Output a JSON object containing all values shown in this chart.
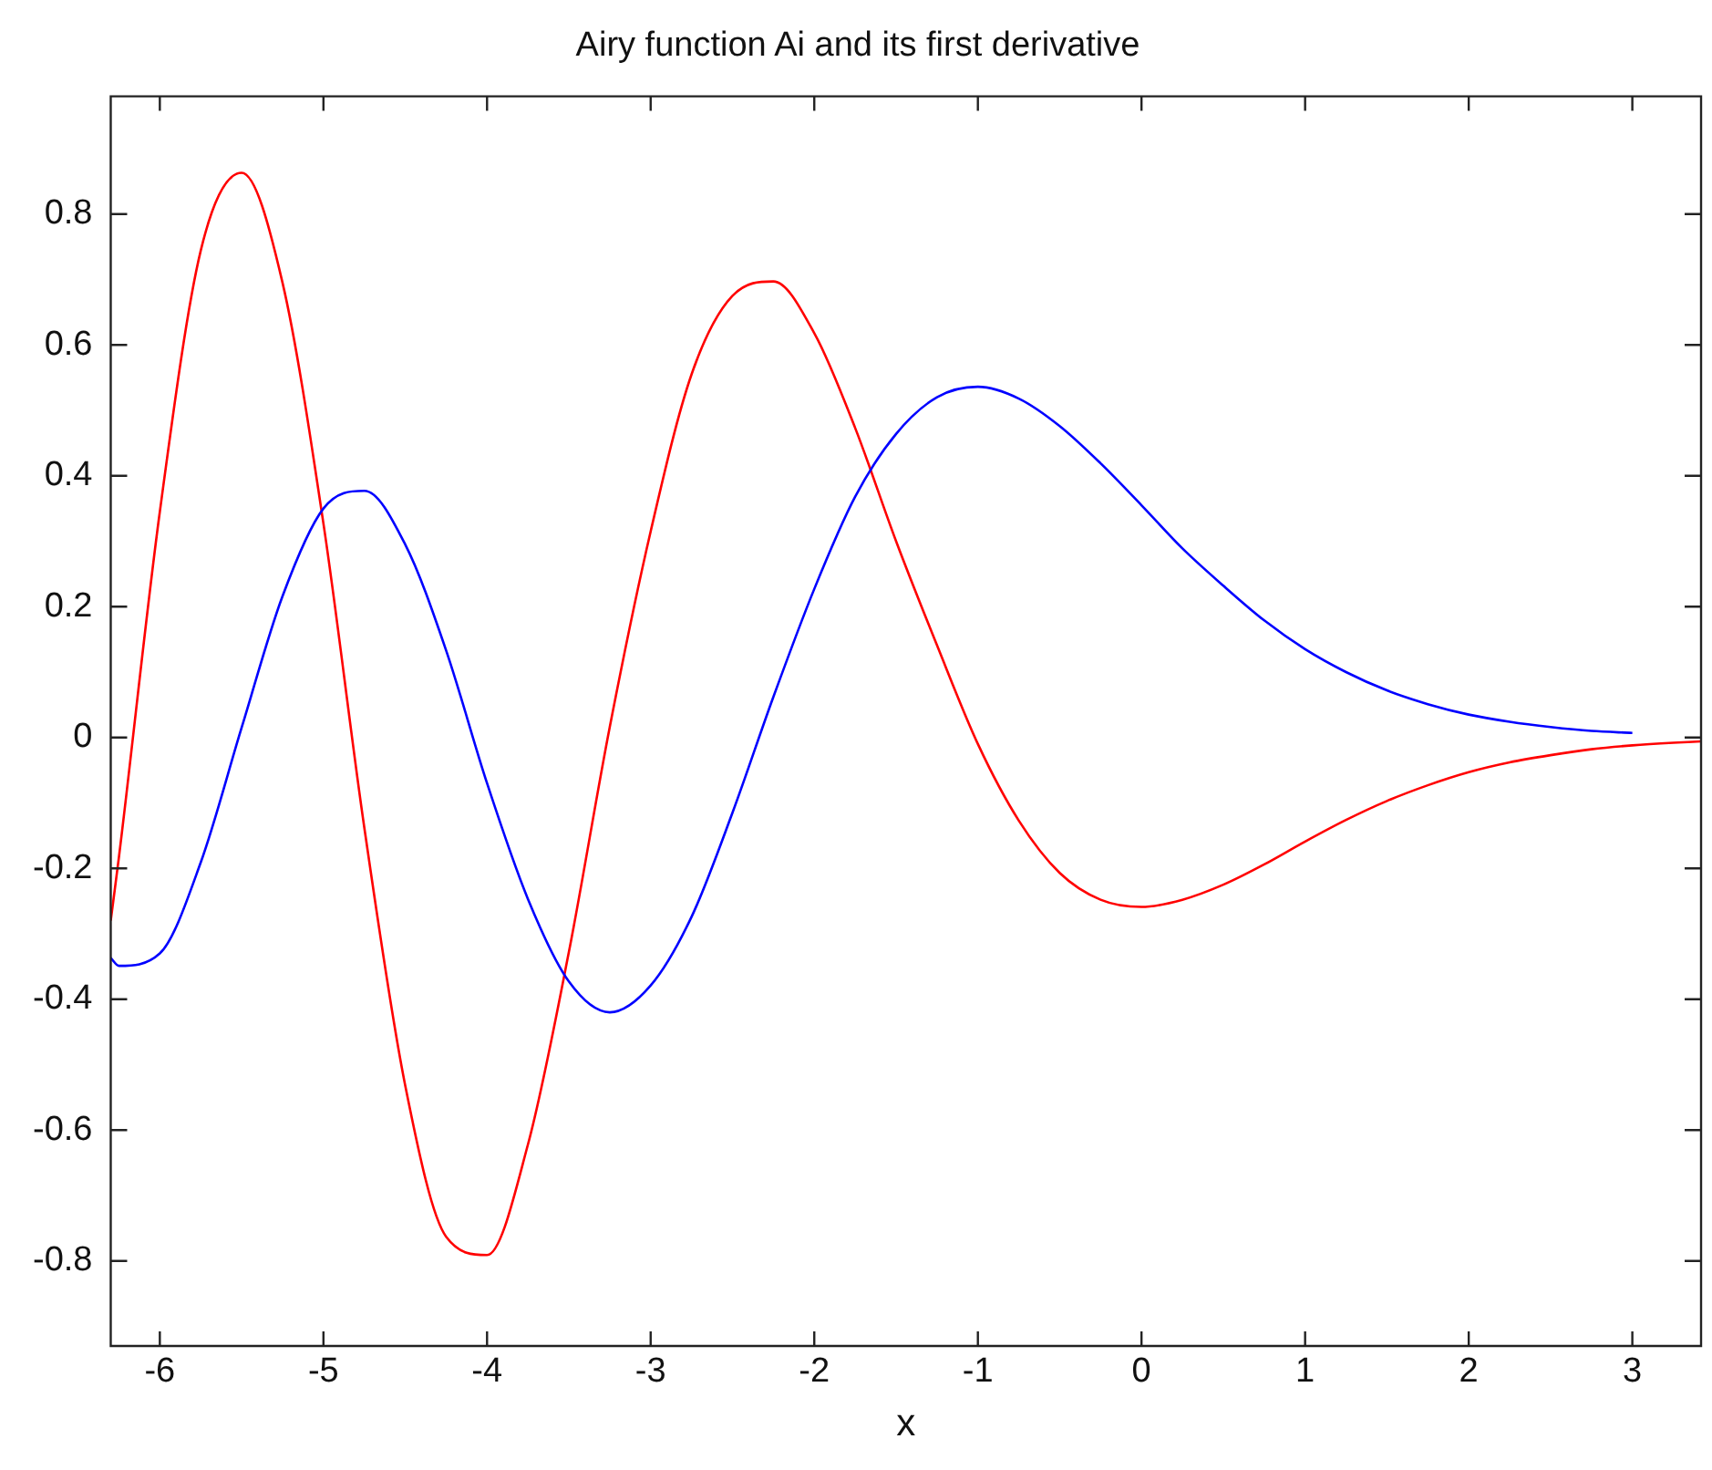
{
  "chart_data": {
    "type": "line",
    "title": "Airy function Ai and its first derivative",
    "xlabel": "x",
    "xlim": [
      -6.3,
      3.42
    ],
    "xticks": [
      -6,
      -5,
      -4,
      -3,
      -2,
      -1,
      0,
      1,
      2,
      3
    ],
    "ylim": [
      -0.93,
      0.98
    ],
    "yticks": [
      -0.8,
      -0.6,
      -0.4,
      -0.2,
      0,
      0.2,
      0.4,
      0.6,
      0.8
    ],
    "grid": false,
    "legend": false,
    "marker": "none",
    "line_style": "solid",
    "series": [
      {
        "color": "#0000ff",
        "x": [
          -6.3,
          -6.25,
          -6.0,
          -5.75,
          -5.5,
          -5.25,
          -5.0,
          -4.75,
          -4.5,
          -4.25,
          -4.0,
          -3.75,
          -3.5,
          -3.25,
          -3.0,
          -2.75,
          -2.5,
          -2.25,
          -2.0,
          -1.75,
          -1.5,
          -1.25,
          -1.0,
          -0.75,
          -0.5,
          -0.25,
          0,
          0.25,
          0.5,
          0.75,
          1.0,
          1.25,
          1.5,
          1.75,
          2.0,
          2.25,
          2.5,
          2.75,
          3.0
        ],
        "values": [
          -0.337,
          -0.349,
          -0.33,
          -0.191,
          0.015,
          0.216,
          0.35,
          0.377,
          0.295,
          0.133,
          -0.07,
          -0.247,
          -0.373,
          -0.42,
          -0.379,
          -0.274,
          -0.115,
          0.062,
          0.227,
          0.368,
          0.464,
          0.52,
          0.536,
          0.518,
          0.476,
          0.419,
          0.355,
          0.289,
          0.232,
          0.179,
          0.135,
          0.1,
          0.072,
          0.051,
          0.035,
          0.024,
          0.016,
          0.01,
          0.007
        ]
      },
      {
        "color": "#ff0000",
        "x": [
          -6.3,
          -6.25,
          -6.0,
          -5.75,
          -5.5,
          -5.25,
          -5.0,
          -4.75,
          -4.5,
          -4.25,
          -4.0,
          -3.75,
          -3.5,
          -3.25,
          -3.0,
          -2.75,
          -2.5,
          -2.25,
          -2.0,
          -1.75,
          -1.5,
          -1.25,
          -1.0,
          -0.75,
          -0.5,
          -0.25,
          0,
          0.25,
          0.5,
          0.75,
          1.0,
          1.25,
          1.5,
          1.75,
          2.0,
          2.25,
          2.5,
          2.75,
          3.0,
          3.25,
          3.42
        ],
        "values": [
          -0.28,
          -0.183,
          0.345,
          0.744,
          0.863,
          0.695,
          0.327,
          -0.138,
          -0.532,
          -0.763,
          -0.791,
          -0.622,
          -0.328,
          0.016,
          0.315,
          0.555,
          0.675,
          0.697,
          0.618,
          0.473,
          0.3,
          0.141,
          -0.01,
          -0.127,
          -0.207,
          -0.248,
          -0.259,
          -0.248,
          -0.225,
          -0.194,
          -0.159,
          -0.126,
          -0.097,
          -0.073,
          -0.053,
          -0.038,
          -0.027,
          -0.018,
          -0.012,
          -0.008,
          -0.006
        ]
      }
    ]
  }
}
